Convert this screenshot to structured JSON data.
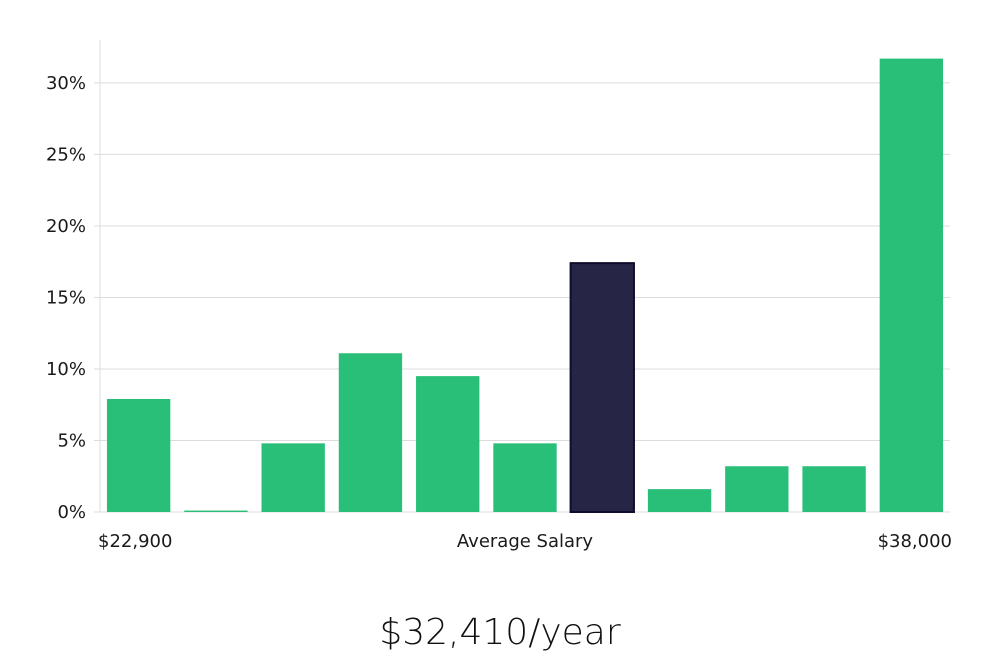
{
  "chart_data": {
    "type": "bar",
    "ylim": [
      0,
      33
    ],
    "yticks": [
      0,
      5,
      10,
      15,
      20,
      25,
      30
    ],
    "ytick_suffix": "%",
    "values": [
      7.9,
      0.1,
      4.8,
      11.1,
      9.5,
      4.8,
      17.4,
      1.6,
      3.2,
      3.2,
      31.7
    ],
    "highlight_index": 6,
    "bar_color": "#2abf78",
    "highlight_color": "#272546",
    "highlight_stroke": "#0f0e2a",
    "x_labels": {
      "left": "$22,900",
      "center": "Average Salary",
      "right": "$38,000"
    },
    "grid": true
  },
  "caption": "$32,410/year"
}
